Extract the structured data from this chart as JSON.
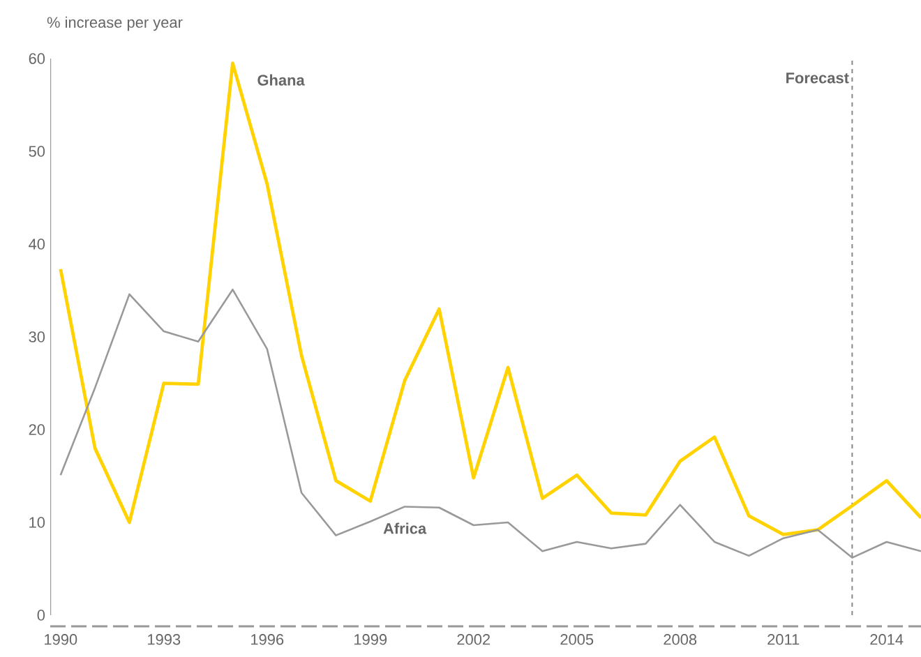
{
  "chart_data": {
    "type": "line",
    "ylabel": "% increase per year",
    "x": [
      1990,
      1991,
      1992,
      1993,
      1994,
      1995,
      1996,
      1997,
      1998,
      1999,
      2000,
      2001,
      2002,
      2003,
      2004,
      2005,
      2006,
      2007,
      2008,
      2009,
      2010,
      2011,
      2012,
      2013,
      2014,
      2015
    ],
    "series": [
      {
        "name": "Ghana",
        "color": "#ffd200",
        "values": [
          37.3,
          18,
          10,
          25,
          24.9,
          59.5,
          46.5,
          28,
          14.5,
          12.3,
          25.3,
          33,
          14.8,
          26.7,
          12.6,
          15.1,
          11,
          10.8,
          16.6,
          19.2,
          10.7,
          8.7,
          9.2,
          11.8,
          14.5,
          10.5
        ]
      },
      {
        "name": "Africa",
        "color": "#999999",
        "values": [
          15.1,
          24.5,
          34.6,
          30.6,
          29.5,
          35.1,
          28.7,
          13.2,
          8.6,
          10.1,
          11.7,
          11.6,
          9.7,
          10,
          6.9,
          7.9,
          7.2,
          7.7,
          11.9,
          7.9,
          6.4,
          8.3,
          9.2,
          6.2,
          7.9,
          6.9
        ]
      }
    ],
    "xlim": [
      1989.7,
      2015
    ],
    "ylim": [
      -1.2,
      60
    ],
    "xticks": [
      1990,
      1993,
      1996,
      1999,
      2002,
      2005,
      2008,
      2011,
      2014
    ],
    "yticks": [
      0,
      10,
      20,
      30,
      40,
      50,
      60
    ],
    "ref_lines": [
      {
        "axis": "x",
        "value": 2013,
        "label": "Forecast",
        "color": "#888888",
        "line_style": "dashed"
      }
    ],
    "grid": false,
    "legend": false,
    "line_style": "solid"
  }
}
